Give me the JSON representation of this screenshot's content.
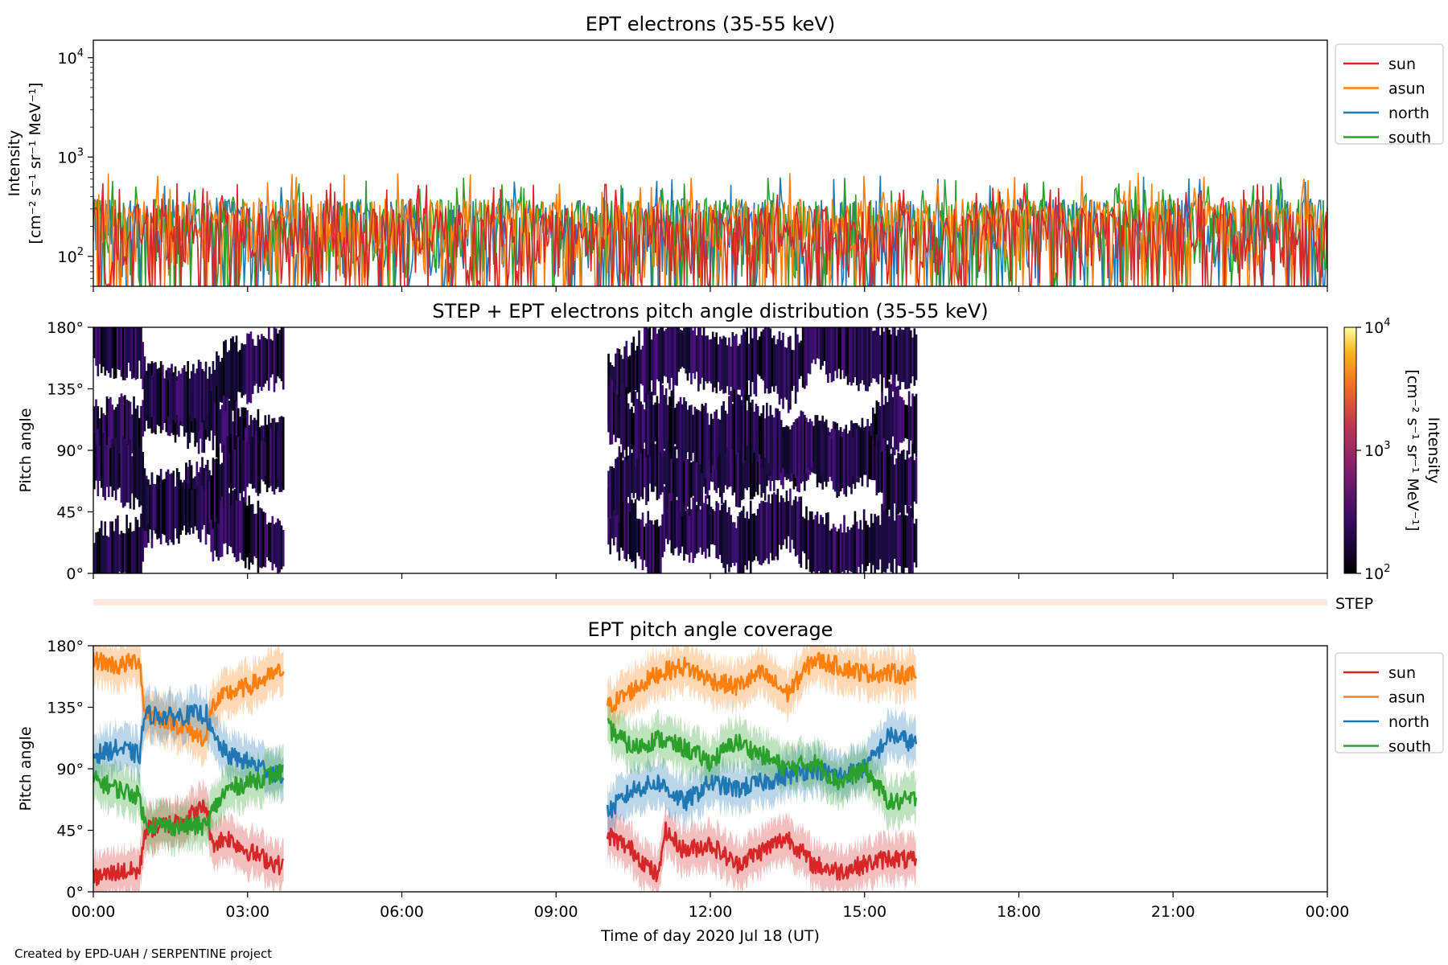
{
  "footer": "Created by EPD-UAH / SERPENTINE project",
  "colors": {
    "sun": "#d62728",
    "asun": "#ff7f0e",
    "north": "#1f77b4",
    "south": "#2ca02c",
    "step_band": "#fde9e2"
  },
  "xaxis": {
    "label": "Time of day 2020 Jul 18 (UT)",
    "ticks": [
      "00:00",
      "03:00",
      "06:00",
      "09:00",
      "12:00",
      "15:00",
      "18:00",
      "21:00",
      "00:00"
    ],
    "range_hours": [
      0,
      24
    ]
  },
  "chart_data": [
    {
      "type": "line",
      "title": "EPT electrons (35-55 keV)",
      "ylabel_line1": "Intensity",
      "ylabel_line2": "[cm⁻² s⁻¹ sr⁻¹ MeV⁻¹]",
      "yscale": "log",
      "ylim": [
        50,
        15000
      ],
      "yticks": [
        {
          "base": "10",
          "exp": "2"
        },
        {
          "base": "10",
          "exp": "3"
        },
        {
          "base": "10",
          "exp": "4"
        }
      ],
      "legend_position": "outside-top-right",
      "series": [
        {
          "name": "sun",
          "typical_range": [
            50,
            550
          ]
        },
        {
          "name": "asun",
          "typical_range": [
            50,
            700
          ]
        },
        {
          "name": "north",
          "typical_range": [
            50,
            650
          ]
        },
        {
          "name": "south",
          "typical_range": [
            50,
            650
          ]
        }
      ]
    },
    {
      "type": "heatmap",
      "title": "STEP + EPT electrons pitch angle distribution (35-55 keV)",
      "ylabel": "Pitch angle",
      "ylim": [
        0,
        180
      ],
      "yticks": [
        "0°",
        "45°",
        "90°",
        "135°",
        "180°"
      ],
      "data_intervals_hours": [
        [
          0,
          3.7
        ],
        [
          10,
          16
        ]
      ],
      "colorbar": {
        "label_line1": "Intensity",
        "label_line2": "[cm⁻² s⁻¹ sr⁻¹ MeV⁻¹]",
        "scale": "log",
        "range": [
          100,
          10000
        ],
        "ticks": [
          {
            "base": "10",
            "exp": "2"
          },
          {
            "base": "10",
            "exp": "3"
          },
          {
            "base": "10",
            "exp": "4"
          }
        ],
        "colormap": "inferno"
      },
      "step_label": "STEP"
    },
    {
      "type": "line",
      "title": "EPT pitch angle coverage",
      "ylabel": "Pitch angle",
      "ylim": [
        0,
        180
      ],
      "yticks": [
        "0°",
        "45°",
        "90°",
        "135°",
        "180°"
      ],
      "legend_position": "outside-top-right",
      "series": [
        {
          "name": "sun",
          "segments": [
            {
              "x": [
                0,
                0.5,
                0.9,
                1.0,
                1.5,
                2.0,
                2.2,
                2.3,
                2.6,
                3.0,
                3.7
              ],
              "y": [
                10,
                15,
                15,
                45,
                50,
                58,
                63,
                35,
                40,
                30,
                18
              ]
            },
            {
              "x": [
                10,
                10.5,
                11.0,
                11.1,
                11.5,
                12.0,
                12.5,
                13.0,
                13.5,
                14.0,
                14.5,
                15.0,
                15.5,
                16.0
              ],
              "y": [
                42,
                30,
                10,
                45,
                30,
                35,
                20,
                30,
                40,
                20,
                15,
                20,
                25,
                22
              ]
            }
          ]
        },
        {
          "name": "asun",
          "segments": [
            {
              "x": [
                0,
                0.5,
                0.9,
                1.0,
                1.5,
                2.0,
                2.2,
                2.3,
                2.6,
                3.0,
                3.7
              ],
              "y": [
                170,
                165,
                170,
                130,
                125,
                115,
                112,
                135,
                145,
                150,
                162
              ]
            },
            {
              "x": [
                10,
                10.5,
                11.0,
                11.5,
                12.0,
                12.5,
                13.0,
                13.5,
                14.0,
                14.5,
                15.0,
                15.5,
                16.0
              ],
              "y": [
                135,
                148,
                160,
                165,
                155,
                150,
                160,
                145,
                170,
                165,
                160,
                160,
                158
              ]
            }
          ]
        },
        {
          "name": "north",
          "segments": [
            {
              "x": [
                0,
                0.5,
                0.9,
                1.0,
                1.5,
                2.0,
                2.2,
                2.3,
                2.6,
                3.0,
                3.7
              ],
              "y": [
                100,
                105,
                100,
                130,
                128,
                130,
                130,
                115,
                100,
                95,
                85
              ]
            },
            {
              "x": [
                10,
                10.5,
                11.0,
                11.5,
                12.0,
                12.5,
                13.0,
                13.5,
                14.0,
                14.5,
                15.0,
                15.5,
                16.0
              ],
              "y": [
                58,
                75,
                80,
                65,
                80,
                75,
                80,
                85,
                90,
                85,
                90,
                115,
                108
              ]
            }
          ]
        },
        {
          "name": "south",
          "segments": [
            {
              "x": [
                0,
                0.5,
                0.9,
                1.0,
                1.5,
                2.0,
                2.2,
                2.3,
                2.6,
                3.0,
                3.7
              ],
              "y": [
                82,
                75,
                70,
                50,
                48,
                48,
                48,
                58,
                75,
                80,
                88
              ]
            },
            {
              "x": [
                10,
                10.5,
                11.0,
                11.5,
                12.0,
                12.5,
                13.0,
                13.5,
                14.0,
                14.5,
                15.0,
                15.5,
                16.0
              ],
              "y": [
                120,
                105,
                112,
                105,
                95,
                110,
                100,
                90,
                95,
                80,
                90,
                65,
                68
              ]
            }
          ]
        }
      ]
    }
  ]
}
